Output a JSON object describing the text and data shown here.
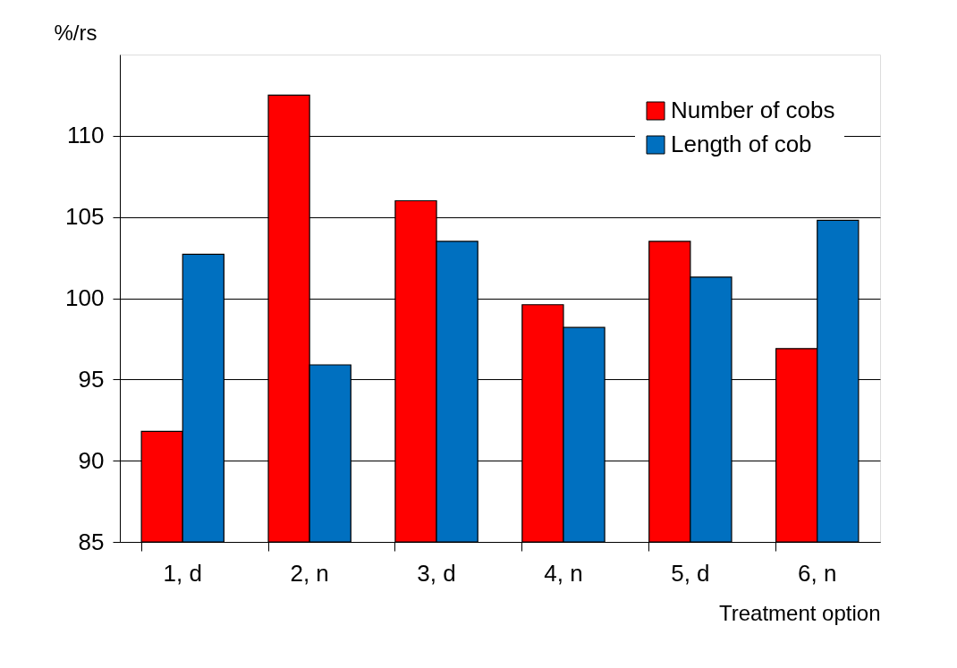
{
  "chart_data": {
    "type": "bar",
    "xlabel": "Treatment option",
    "ylabel": "%/rs",
    "categories": [
      "1, d",
      "2, n",
      "3, d",
      "4, n",
      "5, d",
      "6, n"
    ],
    "series": [
      {
        "name": "Number of cobs",
        "color": "#ff0000",
        "values": [
          91.8,
          112.5,
          106.0,
          99.6,
          103.5,
          96.9
        ]
      },
      {
        "name": "Length of cob",
        "color": "#0070c0",
        "values": [
          102.7,
          95.9,
          103.5,
          98.2,
          101.3,
          104.8
        ]
      }
    ],
    "ylim": [
      85,
      115
    ],
    "yticks": [
      85,
      90,
      95,
      100,
      105,
      110
    ],
    "grid": "y",
    "legend": "top right"
  }
}
